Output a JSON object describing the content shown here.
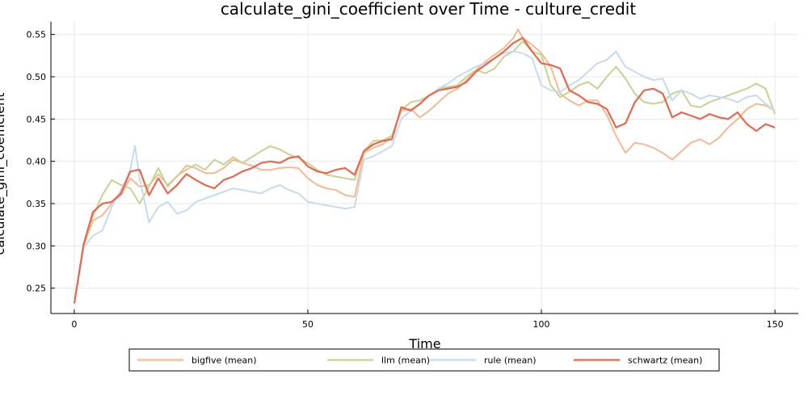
{
  "chart_data": {
    "type": "line",
    "title": "calculate_gini_coefficient over Time - culture_credit",
    "xlabel": "Time",
    "ylabel": "calculate_gini_coefficient",
    "xlim": [
      -5,
      155
    ],
    "ylim": [
      0.22,
      0.565
    ],
    "xticks": [
      0,
      50,
      100,
      150
    ],
    "yticks": [
      0.25,
      0.3,
      0.35,
      0.4,
      0.45,
      0.5,
      0.55
    ],
    "grid": true,
    "legend_position": "bottom",
    "series": [
      {
        "name": "bigfive (mean)",
        "color": "#f5b994",
        "points": [
          [
            0,
            0.232
          ],
          [
            2,
            0.3
          ],
          [
            4,
            0.33
          ],
          [
            6,
            0.336
          ],
          [
            8,
            0.35
          ],
          [
            10,
            0.36
          ],
          [
            12,
            0.38
          ],
          [
            14,
            0.37
          ],
          [
            16,
            0.372
          ],
          [
            18,
            0.385
          ],
          [
            20,
            0.372
          ],
          [
            22,
            0.382
          ],
          [
            24,
            0.395
          ],
          [
            26,
            0.392
          ],
          [
            28,
            0.386
          ],
          [
            30,
            0.386
          ],
          [
            32,
            0.392
          ],
          [
            34,
            0.402
          ],
          [
            36,
            0.398
          ],
          [
            38,
            0.395
          ],
          [
            40,
            0.39
          ],
          [
            42,
            0.39
          ],
          [
            44,
            0.392
          ],
          [
            46,
            0.393
          ],
          [
            48,
            0.392
          ],
          [
            50,
            0.38
          ],
          [
            52,
            0.372
          ],
          [
            54,
            0.368
          ],
          [
            56,
            0.366
          ],
          [
            58,
            0.36
          ],
          [
            60,
            0.358
          ],
          [
            62,
            0.41
          ],
          [
            64,
            0.416
          ],
          [
            66,
            0.42
          ],
          [
            68,
            0.43
          ],
          [
            70,
            0.46
          ],
          [
            72,
            0.462
          ],
          [
            74,
            0.452
          ],
          [
            76,
            0.46
          ],
          [
            78,
            0.47
          ],
          [
            80,
            0.48
          ],
          [
            82,
            0.486
          ],
          [
            84,
            0.496
          ],
          [
            86,
            0.508
          ],
          [
            88,
            0.518
          ],
          [
            90,
            0.526
          ],
          [
            92,
            0.534
          ],
          [
            94,
            0.546
          ],
          [
            95,
            0.556
          ],
          [
            96,
            0.546
          ],
          [
            98,
            0.538
          ],
          [
            100,
            0.528
          ],
          [
            102,
            0.512
          ],
          [
            104,
            0.48
          ],
          [
            106,
            0.472
          ],
          [
            108,
            0.466
          ],
          [
            110,
            0.472
          ],
          [
            112,
            0.472
          ],
          [
            114,
            0.455
          ],
          [
            116,
            0.43
          ],
          [
            118,
            0.41
          ],
          [
            120,
            0.422
          ],
          [
            122,
            0.42
          ],
          [
            124,
            0.416
          ],
          [
            126,
            0.41
          ],
          [
            128,
            0.402
          ],
          [
            130,
            0.412
          ],
          [
            132,
            0.422
          ],
          [
            134,
            0.426
          ],
          [
            136,
            0.42
          ],
          [
            138,
            0.428
          ],
          [
            140,
            0.44
          ],
          [
            142,
            0.45
          ],
          [
            144,
            0.462
          ],
          [
            146,
            0.468
          ],
          [
            148,
            0.466
          ],
          [
            150,
            0.46
          ]
        ]
      },
      {
        "name": "llm (mean)",
        "color": "#c6d392",
        "points": [
          [
            0,
            0.232
          ],
          [
            2,
            0.3
          ],
          [
            4,
            0.335
          ],
          [
            6,
            0.36
          ],
          [
            8,
            0.378
          ],
          [
            10,
            0.372
          ],
          [
            12,
            0.368
          ],
          [
            14,
            0.35
          ],
          [
            16,
            0.37
          ],
          [
            18,
            0.392
          ],
          [
            20,
            0.37
          ],
          [
            22,
            0.383
          ],
          [
            24,
            0.39
          ],
          [
            26,
            0.396
          ],
          [
            28,
            0.39
          ],
          [
            30,
            0.402
          ],
          [
            32,
            0.396
          ],
          [
            34,
            0.405
          ],
          [
            36,
            0.398
          ],
          [
            38,
            0.405
          ],
          [
            40,
            0.412
          ],
          [
            42,
            0.418
          ],
          [
            44,
            0.414
          ],
          [
            46,
            0.408
          ],
          [
            48,
            0.404
          ],
          [
            50,
            0.398
          ],
          [
            52,
            0.39
          ],
          [
            54,
            0.384
          ],
          [
            56,
            0.382
          ],
          [
            58,
            0.38
          ],
          [
            60,
            0.378
          ],
          [
            62,
            0.412
          ],
          [
            64,
            0.424
          ],
          [
            66,
            0.425
          ],
          [
            68,
            0.43
          ],
          [
            70,
            0.46
          ],
          [
            72,
            0.47
          ],
          [
            74,
            0.472
          ],
          [
            76,
            0.478
          ],
          [
            78,
            0.486
          ],
          [
            80,
            0.488
          ],
          [
            82,
            0.49
          ],
          [
            84,
            0.5
          ],
          [
            86,
            0.508
          ],
          [
            88,
            0.504
          ],
          [
            90,
            0.51
          ],
          [
            92,
            0.524
          ],
          [
            94,
            0.53
          ],
          [
            96,
            0.542
          ],
          [
            98,
            0.53
          ],
          [
            100,
            0.526
          ],
          [
            102,
            0.49
          ],
          [
            104,
            0.476
          ],
          [
            106,
            0.482
          ],
          [
            108,
            0.49
          ],
          [
            110,
            0.494
          ],
          [
            112,
            0.486
          ],
          [
            114,
            0.5
          ],
          [
            116,
            0.512
          ],
          [
            118,
            0.498
          ],
          [
            120,
            0.48
          ],
          [
            122,
            0.47
          ],
          [
            124,
            0.468
          ],
          [
            126,
            0.47
          ],
          [
            128,
            0.48
          ],
          [
            130,
            0.484
          ],
          [
            132,
            0.466
          ],
          [
            134,
            0.464
          ],
          [
            136,
            0.47
          ],
          [
            138,
            0.474
          ],
          [
            140,
            0.478
          ],
          [
            142,
            0.482
          ],
          [
            144,
            0.486
          ],
          [
            146,
            0.492
          ],
          [
            148,
            0.486
          ],
          [
            150,
            0.456
          ]
        ]
      },
      {
        "name": "rule (mean)",
        "color": "#c6daf0",
        "points": [
          [
            0,
            0.232
          ],
          [
            2,
            0.298
          ],
          [
            4,
            0.312
          ],
          [
            6,
            0.318
          ],
          [
            8,
            0.346
          ],
          [
            10,
            0.366
          ],
          [
            12,
            0.39
          ],
          [
            13,
            0.418
          ],
          [
            14,
            0.38
          ],
          [
            16,
            0.328
          ],
          [
            18,
            0.346
          ],
          [
            20,
            0.352
          ],
          [
            22,
            0.338
          ],
          [
            24,
            0.342
          ],
          [
            26,
            0.352
          ],
          [
            28,
            0.356
          ],
          [
            30,
            0.36
          ],
          [
            32,
            0.364
          ],
          [
            34,
            0.368
          ],
          [
            36,
            0.366
          ],
          [
            38,
            0.364
          ],
          [
            40,
            0.362
          ],
          [
            42,
            0.368
          ],
          [
            44,
            0.372
          ],
          [
            46,
            0.366
          ],
          [
            48,
            0.362
          ],
          [
            50,
            0.352
          ],
          [
            52,
            0.35
          ],
          [
            54,
            0.348
          ],
          [
            56,
            0.346
          ],
          [
            58,
            0.344
          ],
          [
            60,
            0.346
          ],
          [
            62,
            0.402
          ],
          [
            64,
            0.406
          ],
          [
            66,
            0.412
          ],
          [
            68,
            0.418
          ],
          [
            70,
            0.45
          ],
          [
            72,
            0.46
          ],
          [
            74,
            0.468
          ],
          [
            76,
            0.478
          ],
          [
            78,
            0.486
          ],
          [
            80,
            0.492
          ],
          [
            82,
            0.5
          ],
          [
            84,
            0.506
          ],
          [
            86,
            0.512
          ],
          [
            88,
            0.516
          ],
          [
            90,
            0.522
          ],
          [
            92,
            0.528
          ],
          [
            94,
            0.53
          ],
          [
            96,
            0.528
          ],
          [
            98,
            0.522
          ],
          [
            100,
            0.49
          ],
          [
            102,
            0.484
          ],
          [
            104,
            0.482
          ],
          [
            106,
            0.49
          ],
          [
            108,
            0.496
          ],
          [
            110,
            0.506
          ],
          [
            112,
            0.516
          ],
          [
            114,
            0.52
          ],
          [
            116,
            0.53
          ],
          [
            118,
            0.512
          ],
          [
            120,
            0.506
          ],
          [
            122,
            0.5
          ],
          [
            124,
            0.496
          ],
          [
            126,
            0.498
          ],
          [
            128,
            0.472
          ],
          [
            130,
            0.484
          ],
          [
            132,
            0.48
          ],
          [
            134,
            0.474
          ],
          [
            136,
            0.478
          ],
          [
            138,
            0.476
          ],
          [
            140,
            0.474
          ],
          [
            142,
            0.47
          ],
          [
            144,
            0.476
          ],
          [
            146,
            0.478
          ],
          [
            148,
            0.468
          ],
          [
            150,
            0.46
          ]
        ]
      },
      {
        "name": "schwartz (mean)",
        "color": "#e6684e",
        "points": [
          [
            0,
            0.232
          ],
          [
            2,
            0.302
          ],
          [
            4,
            0.34
          ],
          [
            6,
            0.35
          ],
          [
            8,
            0.352
          ],
          [
            10,
            0.362
          ],
          [
            12,
            0.388
          ],
          [
            14,
            0.39
          ],
          [
            16,
            0.36
          ],
          [
            18,
            0.38
          ],
          [
            20,
            0.362
          ],
          [
            22,
            0.372
          ],
          [
            24,
            0.385
          ],
          [
            26,
            0.378
          ],
          [
            28,
            0.372
          ],
          [
            30,
            0.368
          ],
          [
            32,
            0.378
          ],
          [
            34,
            0.382
          ],
          [
            36,
            0.388
          ],
          [
            38,
            0.392
          ],
          [
            40,
            0.398
          ],
          [
            42,
            0.4
          ],
          [
            44,
            0.398
          ],
          [
            46,
            0.404
          ],
          [
            48,
            0.406
          ],
          [
            50,
            0.394
          ],
          [
            52,
            0.388
          ],
          [
            54,
            0.386
          ],
          [
            56,
            0.39
          ],
          [
            58,
            0.392
          ],
          [
            60,
            0.384
          ],
          [
            62,
            0.412
          ],
          [
            64,
            0.42
          ],
          [
            66,
            0.424
          ],
          [
            68,
            0.426
          ],
          [
            70,
            0.464
          ],
          [
            72,
            0.46
          ],
          [
            74,
            0.468
          ],
          [
            76,
            0.478
          ],
          [
            78,
            0.484
          ],
          [
            80,
            0.486
          ],
          [
            82,
            0.488
          ],
          [
            84,
            0.494
          ],
          [
            86,
            0.506
          ],
          [
            88,
            0.514
          ],
          [
            90,
            0.522
          ],
          [
            92,
            0.53
          ],
          [
            94,
            0.54
          ],
          [
            96,
            0.546
          ],
          [
            98,
            0.53
          ],
          [
            100,
            0.516
          ],
          [
            102,
            0.514
          ],
          [
            104,
            0.51
          ],
          [
            106,
            0.484
          ],
          [
            108,
            0.478
          ],
          [
            110,
            0.47
          ],
          [
            112,
            0.468
          ],
          [
            114,
            0.462
          ],
          [
            116,
            0.44
          ],
          [
            118,
            0.445
          ],
          [
            120,
            0.47
          ],
          [
            122,
            0.484
          ],
          [
            124,
            0.486
          ],
          [
            126,
            0.48
          ],
          [
            128,
            0.452
          ],
          [
            130,
            0.458
          ],
          [
            132,
            0.454
          ],
          [
            134,
            0.45
          ],
          [
            136,
            0.456
          ],
          [
            138,
            0.452
          ],
          [
            140,
            0.45
          ],
          [
            142,
            0.458
          ],
          [
            144,
            0.444
          ],
          [
            146,
            0.436
          ],
          [
            148,
            0.444
          ],
          [
            150,
            0.44
          ]
        ]
      }
    ]
  }
}
